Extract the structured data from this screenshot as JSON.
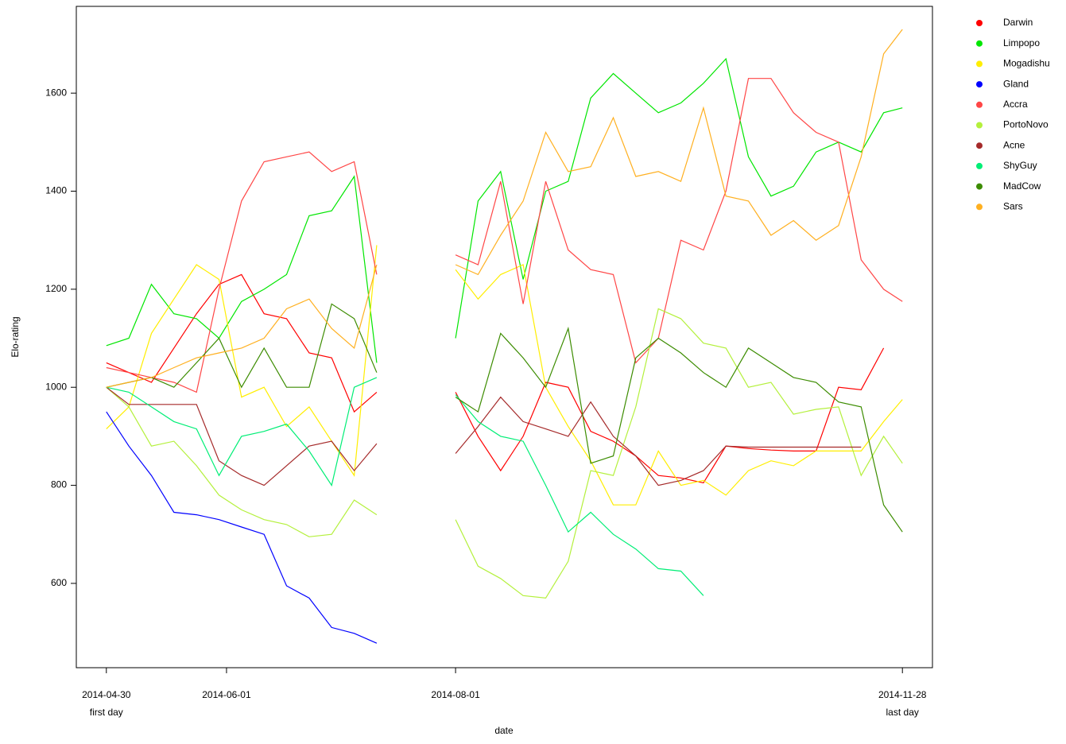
{
  "chart_data": {
    "type": "line",
    "x_label": "date",
    "y_label": "Elo-rating",
    "x": [
      "2014-04-30",
      "2014-05-06",
      "2014-05-12",
      "2014-05-18",
      "2014-05-24",
      "2014-05-30",
      "2014-06-05",
      "2014-06-11",
      "2014-06-17",
      "2014-06-23",
      "2014-06-29",
      "2014-07-05",
      "2014-07-11",
      "2014-07-22",
      "2014-08-01",
      "2014-08-07",
      "2014-08-13",
      "2014-08-19",
      "2014-08-25",
      "2014-08-31",
      "2014-09-06",
      "2014-09-12",
      "2014-09-18",
      "2014-09-24",
      "2014-09-30",
      "2014-10-06",
      "2014-10-12",
      "2014-10-18",
      "2014-10-24",
      "2014-10-30",
      "2014-11-05",
      "2014-11-11",
      "2014-11-17",
      "2014-11-23",
      "2014-11-28"
    ],
    "xlim": [
      "2014-04-22",
      "2014-12-06"
    ],
    "xticks": [
      "2014-04-30",
      "2014-06-01",
      "2014-08-01",
      "2014-11-28"
    ],
    "xtick_notes": [
      {
        "x": "2014-04-30",
        "text": "first day"
      },
      {
        "x": "2014-11-28",
        "text": "last day"
      }
    ],
    "ylim": [
      428,
      1777
    ],
    "yticks": [
      600,
      800,
      1000,
      1200,
      1400,
      1600
    ],
    "grid": false,
    "legend": "right",
    "series": [
      {
        "name": "Darwin",
        "color": "#ff0000",
        "values": [
          1050,
          1030,
          1010,
          1080,
          1150,
          1210,
          1230,
          1150,
          1140,
          1070,
          1060,
          950,
          990,
          null,
          990,
          900,
          830,
          900,
          1010,
          1000,
          910,
          890,
          860,
          820,
          815,
          805,
          880,
          875,
          872,
          870,
          870,
          1000,
          995,
          1080,
          null
        ]
      },
      {
        "name": "Limpopo",
        "color": "#00e600",
        "values": [
          1085,
          1100,
          1210,
          1150,
          1140,
          1100,
          1175,
          1200,
          1230,
          1350,
          1360,
          1430,
          1050,
          null,
          1100,
          1380,
          1440,
          1220,
          1400,
          1420,
          1590,
          1640,
          1600,
          1560,
          1580,
          1620,
          1670,
          1470,
          1390,
          1410,
          1480,
          1500,
          1480,
          1560,
          1570
        ]
      },
      {
        "name": "Mogadishu",
        "color": "#ffee00",
        "values": [
          915,
          960,
          1110,
          1180,
          1250,
          1220,
          980,
          1000,
          920,
          960,
          890,
          820,
          1290,
          null,
          1240,
          1180,
          1230,
          1250,
          1000,
          920,
          850,
          760,
          760,
          870,
          800,
          810,
          780,
          830,
          850,
          840,
          870,
          870,
          870,
          930,
          975
        ]
      },
      {
        "name": "Gland",
        "color": "#0000ff",
        "values": [
          950,
          880,
          820,
          745,
          740,
          730,
          715,
          700,
          595,
          570,
          510,
          498,
          478,
          null,
          null,
          null,
          null,
          null,
          null,
          null,
          null,
          null,
          null,
          null,
          null,
          null,
          null,
          null,
          null,
          null,
          null,
          null,
          null,
          null,
          null
        ]
      },
      {
        "name": "Accra",
        "color": "#ff4646",
        "values": [
          1040,
          1030,
          1020,
          1010,
          990,
          1200,
          1380,
          1460,
          1470,
          1480,
          1440,
          1460,
          1230,
          null,
          1270,
          1250,
          1420,
          1170,
          1420,
          1280,
          1240,
          1230,
          1050,
          1100,
          1300,
          1280,
          1400,
          1630,
          1630,
          1560,
          1520,
          1500,
          1260,
          1200,
          1175
        ]
      },
      {
        "name": "PortoNovo",
        "color": "#b4f03c",
        "values": [
          1000,
          960,
          880,
          890,
          840,
          780,
          750,
          730,
          720,
          695,
          700,
          770,
          740,
          null,
          730,
          635,
          610,
          575,
          570,
          645,
          830,
          820,
          960,
          1160,
          1140,
          1090,
          1080,
          1000,
          1010,
          945,
          955,
          960,
          820,
          900,
          845
        ]
      },
      {
        "name": "Acne",
        "color": "#a52a2a",
        "values": [
          1000,
          965,
          965,
          965,
          965,
          850,
          820,
          800,
          840,
          880,
          890,
          830,
          885,
          null,
          865,
          920,
          980,
          930,
          915,
          900,
          970,
          900,
          860,
          800,
          810,
          830,
          880,
          878,
          878,
          878,
          878,
          878,
          878,
          null,
          null
        ]
      },
      {
        "name": "ShyGuy",
        "color": "#00ee76",
        "values": [
          1000,
          990,
          960,
          930,
          915,
          820,
          900,
          910,
          925,
          870,
          800,
          1000,
          1020,
          null,
          985,
          930,
          900,
          890,
          800,
          705,
          745,
          700,
          670,
          630,
          625,
          575,
          null,
          null,
          null,
          null,
          null,
          null,
          null,
          null,
          null
        ]
      },
      {
        "name": "MadCow",
        "color": "#3c8c00",
        "values": [
          1000,
          1010,
          1020,
          1000,
          1050,
          1100,
          1000,
          1080,
          1000,
          1000,
          1170,
          1140,
          1030,
          null,
          980,
          950,
          1110,
          1060,
          1000,
          1120,
          845,
          860,
          1060,
          1100,
          1070,
          1030,
          1000,
          1080,
          1050,
          1020,
          1010,
          970,
          960,
          760,
          705
        ]
      },
      {
        "name": "Sars",
        "color": "#ffb020",
        "values": [
          1000,
          1010,
          1020,
          1040,
          1060,
          1070,
          1080,
          1100,
          1160,
          1180,
          1120,
          1080,
          1250,
          null,
          1250,
          1230,
          1310,
          1380,
          1520,
          1440,
          1450,
          1550,
          1430,
          1440,
          1420,
          1570,
          1390,
          1380,
          1310,
          1340,
          1300,
          1330,
          1470,
          1680,
          1730
        ]
      }
    ]
  }
}
